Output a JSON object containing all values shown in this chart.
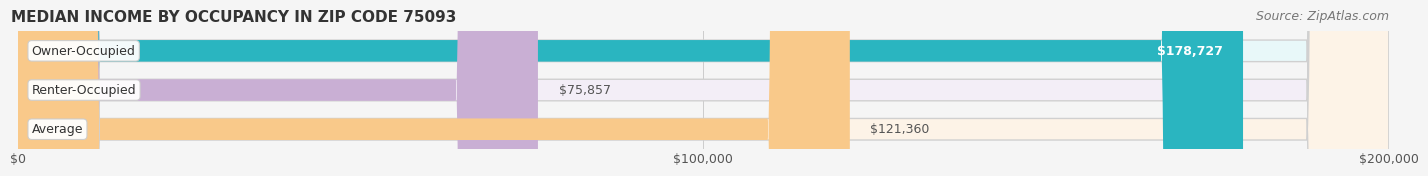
{
  "title": "MEDIAN INCOME BY OCCUPANCY IN ZIP CODE 75093",
  "source": "Source: ZipAtlas.com",
  "categories": [
    "Owner-Occupied",
    "Renter-Occupied",
    "Average"
  ],
  "values": [
    178727,
    75857,
    121360
  ],
  "labels": [
    "$178,727",
    "$75,857",
    "$121,360"
  ],
  "bar_colors": [
    "#2ab5c0",
    "#c9afd4",
    "#f9c98a"
  ],
  "bar_bg_colors": [
    "#e8f8f9",
    "#f3eef7",
    "#fdf3e7"
  ],
  "xlim": [
    0,
    200000
  ],
  "xticks": [
    0,
    100000,
    200000
  ],
  "xtick_labels": [
    "$0",
    "$100,000",
    "$200,000"
  ],
  "title_fontsize": 11,
  "source_fontsize": 9,
  "label_fontsize": 9,
  "bar_height": 0.55,
  "background_color": "#f5f5f5"
}
